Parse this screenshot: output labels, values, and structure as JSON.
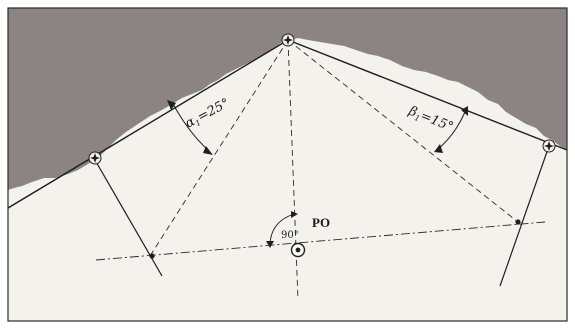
{
  "diagram": {
    "label_alpha": "α",
    "label_alpha_sub": "1",
    "label_alpha_value": "=25°",
    "label_beta": "β",
    "label_beta_sub": "1",
    "label_beta_value": "=15°",
    "label_po": "PO",
    "label_right_angle": "90°"
  },
  "colors": {
    "sky": "#8c8482",
    "ground": "#f4f2ec",
    "line": "#1f1f1f",
    "frame": "#2a2a2a"
  }
}
